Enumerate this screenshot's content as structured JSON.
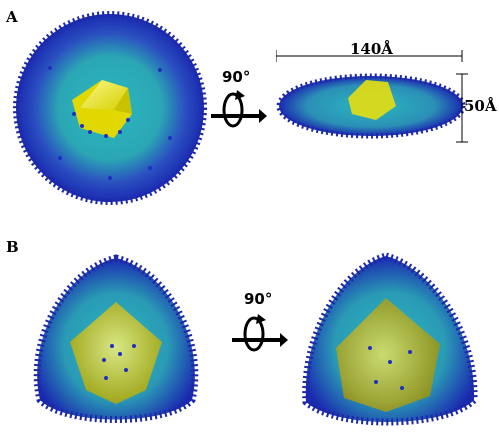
{
  "panels": [
    {
      "label": "A",
      "rotation": "90°",
      "width_label": "140Å",
      "height_label": "50Å"
    },
    {
      "label": "B",
      "rotation": "90°"
    }
  ],
  "colors": {
    "core": "#f2ee1c",
    "ligand_inner": "#1fb7b5",
    "ligand_outer": "#1f2fbf",
    "background": "#ffffff"
  }
}
